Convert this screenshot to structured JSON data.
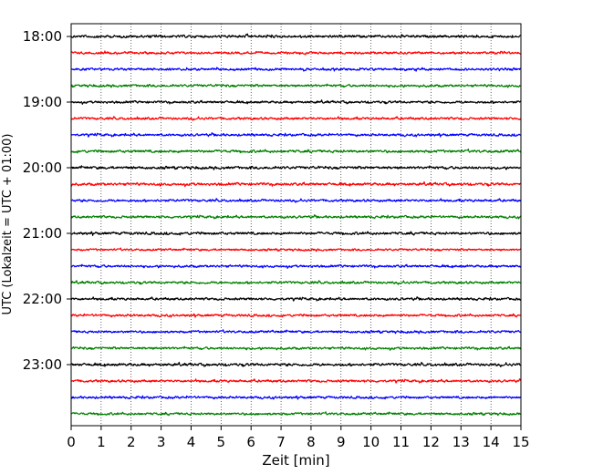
{
  "chart_data": {
    "type": "line",
    "title": "",
    "xlabel": "Zeit  [min]",
    "ylabel": "UTC (Lokalzeit = UTC + 01:00)",
    "xlim": [
      0,
      15
    ],
    "x_ticks": [
      0,
      1,
      2,
      3,
      4,
      5,
      6,
      7,
      8,
      9,
      10,
      11,
      12,
      13,
      14,
      15
    ],
    "y_tick_labels": [
      "18:00",
      "19:00",
      "20:00",
      "21:00",
      "22:00",
      "23:00"
    ],
    "grid": "vertical dotted",
    "row_interval_min": 15,
    "row_colors": [
      "#000000",
      "#ff0000",
      "#0000ff",
      "#008000"
    ],
    "rows": [
      {
        "start": "18:00",
        "amplitude": 0.9
      },
      {
        "start": "18:15",
        "amplitude": 0.8
      },
      {
        "start": "18:30",
        "amplitude": 0.8
      },
      {
        "start": "18:45",
        "amplitude": 0.8
      },
      {
        "start": "19:00",
        "amplitude": 0.8
      },
      {
        "start": "19:15",
        "amplitude": 0.8
      },
      {
        "start": "19:30",
        "amplitude": 0.8
      },
      {
        "start": "19:45",
        "amplitude": 0.9
      },
      {
        "start": "20:00",
        "amplitude": 0.9
      },
      {
        "start": "20:15",
        "amplitude": 0.9
      },
      {
        "start": "20:30",
        "amplitude": 0.8
      },
      {
        "start": "20:45",
        "amplitude": 0.8
      },
      {
        "start": "21:00",
        "amplitude": 0.9
      },
      {
        "start": "21:15",
        "amplitude": 0.7
      },
      {
        "start": "21:30",
        "amplitude": 0.8
      },
      {
        "start": "21:45",
        "amplitude": 0.8
      },
      {
        "start": "22:00",
        "amplitude": 0.8
      },
      {
        "start": "22:15",
        "amplitude": 0.8
      },
      {
        "start": "22:30",
        "amplitude": 0.8
      },
      {
        "start": "22:45",
        "amplitude": 0.8
      },
      {
        "start": "23:00",
        "amplitude": 0.9
      },
      {
        "start": "23:15",
        "amplitude": 0.8
      },
      {
        "start": "23:30",
        "amplitude": 0.8
      },
      {
        "start": "23:45",
        "amplitude": 0.8
      }
    ]
  }
}
